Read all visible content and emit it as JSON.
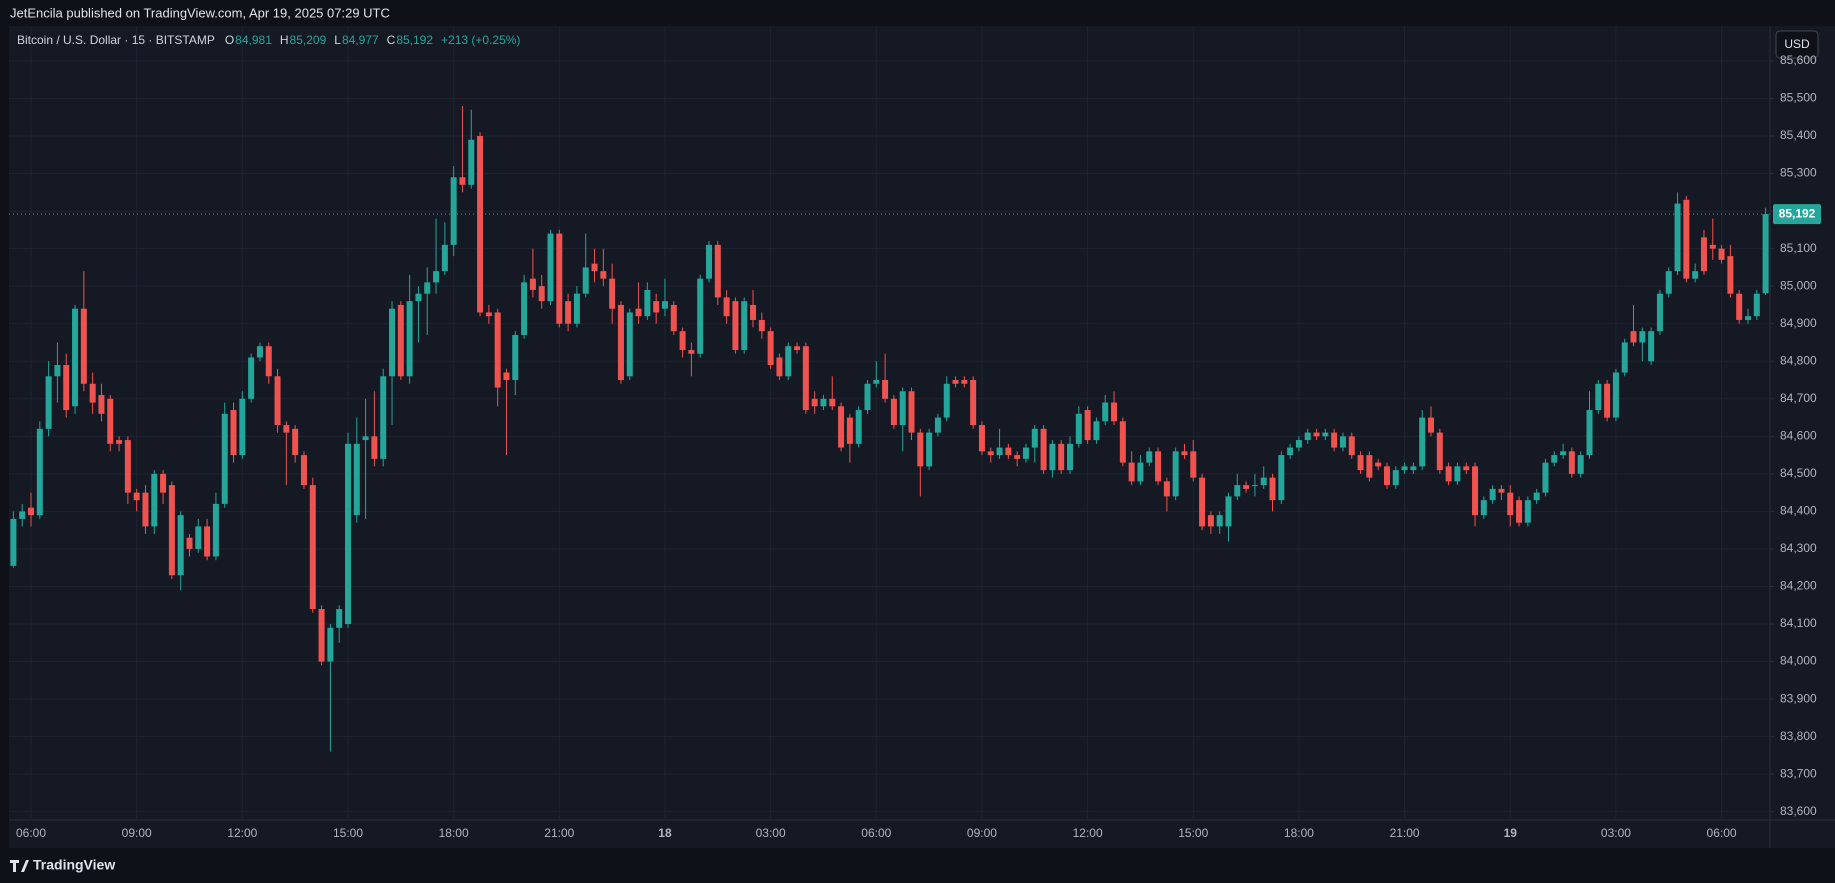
{
  "header": {
    "publisher": "JetEncila published on TradingView.com, Apr 19, 2025 07:29 UTC"
  },
  "footer": {
    "brand": "TradingView"
  },
  "currency": "USD",
  "legend": {
    "symbol": "Bitcoin / U.S. Dollar · 15 · BITSTAMP",
    "ohlc": [
      {
        "key": "O",
        "value": "84,981"
      },
      {
        "key": "H",
        "value": "85,209"
      },
      {
        "key": "L",
        "value": "84,977"
      },
      {
        "key": "C",
        "value": "85,192"
      }
    ],
    "change": "+213 (+0.25%)"
  },
  "chart_data": {
    "type": "candlestick",
    "up_color": "#26a69a",
    "down_color": "#ef5350",
    "grid": true,
    "last_price": {
      "value": 85192,
      "label": "85,192"
    },
    "xlim": [
      -0.5,
      199.5
    ],
    "xticks": [
      {
        "value": 2,
        "label": "06:00"
      },
      {
        "value": 14,
        "label": "09:00"
      },
      {
        "value": 26,
        "label": "12:00"
      },
      {
        "value": 38,
        "label": "15:00"
      },
      {
        "value": 50,
        "label": "18:00"
      },
      {
        "value": 62,
        "label": "21:00"
      },
      {
        "value": 74,
        "label": "18"
      },
      {
        "value": 86,
        "label": "03:00"
      },
      {
        "value": 98,
        "label": "06:00"
      },
      {
        "value": 110,
        "label": "09:00"
      },
      {
        "value": 122,
        "label": "12:00"
      },
      {
        "value": 134,
        "label": "15:00"
      },
      {
        "value": 146,
        "label": "18:00"
      },
      {
        "value": 158,
        "label": "21:00"
      },
      {
        "value": 170,
        "label": "19"
      },
      {
        "value": 182,
        "label": "03:00"
      },
      {
        "value": 194,
        "label": "06:00"
      }
    ],
    "ylim": [
      83578,
      85693
    ],
    "yticks": [
      {
        "value": 83600,
        "label": "83,600"
      },
      {
        "value": 83700,
        "label": "83,700"
      },
      {
        "value": 83800,
        "label": "83,800"
      },
      {
        "value": 83900,
        "label": "83,900"
      },
      {
        "value": 84000,
        "label": "84,000"
      },
      {
        "value": 84100,
        "label": "84,100"
      },
      {
        "value": 84200,
        "label": "84,200"
      },
      {
        "value": 84300,
        "label": "84,300"
      },
      {
        "value": 84400,
        "label": "84,400"
      },
      {
        "value": 84500,
        "label": "84,500"
      },
      {
        "value": 84600,
        "label": "84,600"
      },
      {
        "value": 84700,
        "label": "84,700"
      },
      {
        "value": 84800,
        "label": "84,800"
      },
      {
        "value": 84900,
        "label": "84,900"
      },
      {
        "value": 85000,
        "label": "85,000"
      },
      {
        "value": 85100,
        "label": "85,100"
      },
      {
        "value": 85200,
        "label": "85,200"
      },
      {
        "value": 85300,
        "label": "85,300"
      },
      {
        "value": 85400,
        "label": "85,400"
      },
      {
        "value": 85500,
        "label": "85,500"
      },
      {
        "value": 85600,
        "label": "85,600"
      }
    ],
    "open": [
      84255,
      84380,
      84410,
      84390,
      84620,
      84760,
      84790,
      84680,
      84940,
      84740,
      84710,
      84700,
      84590,
      84590,
      84450,
      84450,
      84360,
      84500,
      84470,
      84230,
      84330,
      84300,
      84360,
      84280,
      84420,
      84670,
      84550,
      84700,
      84810,
      84840,
      84760,
      84630,
      84620,
      84550,
      84470,
      84140,
      84000,
      84090,
      84100,
      84390,
      84590,
      84600,
      84540,
      84760,
      84950,
      84760,
      84960,
      84980,
      85010,
      85040,
      85110,
      85290,
      85270,
      85400,
      84930,
      84930,
      84770,
      84750,
      84870,
      85020,
      85000,
      84960,
      85140,
      84960,
      84900,
      84980,
      85060,
      85040,
      85020,
      84950,
      84760,
      84940,
      84920,
      84960,
      84940,
      84950,
      84880,
      84830,
      84820,
      85020,
      85110,
      84970,
      84960,
      84830,
      84950,
      84910,
      84880,
      84810,
      84760,
      84840,
      84840,
      84700,
      84680,
      84700,
      84680,
      84650,
      84580,
      84670,
      84740,
      84750,
      84700,
      84630,
      84720,
      84610,
      84520,
      84610,
      84650,
      84750,
      84750,
      84750,
      84630,
      84560,
      84550,
      84570,
      84550,
      84540,
      84570,
      84620,
      84510,
      84580,
      84510,
      84580,
      84670,
      84590,
      84640,
      84690,
      84640,
      84530,
      84480,
      84530,
      84560,
      84480,
      84440,
      84560,
      84560,
      84490,
      84390,
      84360,
      84360,
      84440,
      84470,
      84470,
      84470,
      84490,
      84430,
      84550,
      84570,
      84590,
      84610,
      84600,
      84610,
      84570,
      84600,
      84550,
      84550,
      84530,
      84520,
      84470,
      84510,
      84510,
      84520,
      84650,
      84610,
      84520,
      84480,
      84520,
      84520,
      84390,
      84430,
      84460,
      84450,
      84430,
      84370,
      84430,
      84450,
      84530,
      84550,
      84560,
      84500,
      84550,
      84670,
      84740,
      84650,
      84770,
      84880,
      84850,
      84800,
      84880,
      84980,
      85040,
      85230,
      85020,
      85130,
      85110,
      85100,
      85080,
      84980,
      84910,
      84920,
      84981
    ],
    "high": [
      84400,
      84420,
      84450,
      84640,
      84800,
      84850,
      84820,
      84950,
      85040,
      84770,
      84740,
      84710,
      84600,
      84600,
      84460,
      84470,
      84510,
      84510,
      84480,
      84400,
      84340,
      84380,
      84380,
      84450,
      84690,
      84690,
      84720,
      84820,
      84850,
      84850,
      84780,
      84640,
      84630,
      84560,
      84490,
      84150,
      84100,
      84150,
      84610,
      84650,
      84700,
      84720,
      84780,
      84960,
      84960,
      85030,
      85000,
      85050,
      85180,
      85170,
      85320,
      85480,
      85470,
      85410,
      84950,
      84940,
      84780,
      84880,
      85030,
      85100,
      85030,
      85150,
      85150,
      84980,
      85000,
      85140,
      85100,
      85100,
      85060,
      84960,
      84940,
      85010,
      85010,
      84980,
      85020,
      84960,
      84890,
      84850,
      85030,
      85120,
      85120,
      84990,
      84970,
      84970,
      84990,
      84930,
      84890,
      84820,
      84850,
      84850,
      84850,
      84720,
      84710,
      84760,
      84690,
      84660,
      84680,
      84750,
      84800,
      84820,
      84710,
      84730,
      84730,
      84620,
      84620,
      84660,
      84760,
      84760,
      84760,
      84760,
      84640,
      84570,
      84620,
      84580,
      84560,
      84580,
      84630,
      84630,
      84590,
      84590,
      84600,
      84680,
      84680,
      84650,
      84710,
      84720,
      84650,
      84560,
      84550,
      84570,
      84570,
      84490,
      84570,
      84580,
      84590,
      84500,
      84400,
      84400,
      84450,
      84500,
      84480,
      84500,
      84520,
      84500,
      84560,
      84580,
      84600,
      84620,
      84620,
      84620,
      84620,
      84610,
      84610,
      84560,
      84560,
      84540,
      84530,
      84520,
      84530,
      84530,
      84670,
      84680,
      84620,
      84530,
      84530,
      84530,
      84530,
      84440,
      84470,
      84470,
      84470,
      84440,
      84440,
      84460,
      84540,
      84560,
      84580,
      84570,
      84560,
      84720,
      84750,
      84750,
      84780,
      84860,
      84950,
      84890,
      84890,
      84990,
      85050,
      85250,
      85240,
      85060,
      85150,
      85180,
      85110,
      85110,
      84990,
      84940,
      84990,
      85209
    ],
    "low": [
      84250,
      84360,
      84360,
      84380,
      84600,
      84690,
      84650,
      84660,
      84720,
      84660,
      84640,
      84560,
      84560,
      84420,
      84400,
      84340,
      84340,
      84420,
      84220,
      84190,
      84280,
      84290,
      84270,
      84270,
      84410,
      84530,
      84540,
      84690,
      84800,
      84740,
      84610,
      84470,
      84530,
      84460,
      84130,
      83990,
      83760,
      84050,
      84090,
      84370,
      84380,
      84520,
      84520,
      84630,
      84750,
      84740,
      84850,
      84870,
      84980,
      85030,
      85080,
      85250,
      85260,
      84920,
      84900,
      84680,
      84550,
      84710,
      84860,
      84970,
      84940,
      84950,
      84890,
      84880,
      84890,
      84970,
      85010,
      85000,
      84900,
      84740,
      84750,
      84900,
      84910,
      84900,
      84920,
      84870,
      84810,
      84760,
      84810,
      85010,
      84950,
      84900,
      84820,
      84820,
      84890,
      84860,
      84780,
      84750,
      84750,
      84820,
      84660,
      84660,
      84670,
      84670,
      84560,
      84530,
      84570,
      84660,
      84730,
      84690,
      84620,
      84560,
      84590,
      84440,
      84510,
      84600,
      84640,
      84730,
      84730,
      84620,
      84550,
      84530,
      84540,
      84540,
      84520,
      84530,
      84530,
      84500,
      84490,
      84500,
      84500,
      84570,
      84580,
      84580,
      84630,
      84630,
      84520,
      84470,
      84470,
      84520,
      84470,
      84400,
      84430,
      84540,
      84480,
      84350,
      84340,
      84340,
      84320,
      84430,
      84450,
      84440,
      84460,
      84400,
      84420,
      84540,
      84560,
      84580,
      84590,
      84590,
      84560,
      84560,
      84540,
      84500,
      84480,
      84510,
      84460,
      84460,
      84500,
      84500,
      84510,
      84600,
      84500,
      84470,
      84470,
      84500,
      84360,
      84380,
      84420,
      84430,
      84360,
      84360,
      84360,
      84420,
      84440,
      84520,
      84540,
      84490,
      84490,
      84540,
      84660,
      84640,
      84640,
      84760,
      84840,
      84800,
      84790,
      84870,
      84970,
      85030,
      85010,
      85010,
      85030,
      85070,
      85060,
      84970,
      84900,
      84900,
      84910,
      84977
    ],
    "close": [
      84380,
      84400,
      84390,
      84620,
      84760,
      84790,
      84670,
      84940,
      84740,
      84690,
      84660,
      84580,
      84580,
      84450,
      84430,
      84360,
      84500,
      84450,
      84230,
      84390,
      84300,
      84360,
      84280,
      84420,
      84660,
      84550,
      84700,
      84810,
      84840,
      84760,
      84630,
      84610,
      84550,
      84470,
      84140,
      84000,
      84090,
      84140,
      84580,
      84580,
      84600,
      84540,
      84760,
      84940,
      84760,
      84960,
      84980,
      85010,
      85040,
      85110,
      85290,
      85270,
      85390,
      84930,
      84920,
      84730,
      84750,
      84870,
      85010,
      84990,
      84960,
      85140,
      84900,
      84900,
      84980,
      85050,
      85040,
      85020,
      84940,
      84750,
      84930,
      84920,
      84990,
      84930,
      84960,
      84880,
      84830,
      84820,
      85020,
      85110,
      84970,
      84920,
      84830,
      84960,
      84910,
      84880,
      84790,
      84760,
      84840,
      84830,
      84670,
      84680,
      84700,
      84680,
      84570,
      84580,
      84670,
      84740,
      84750,
      84700,
      84630,
      84720,
      84610,
      84520,
      84610,
      84650,
      84740,
      84740,
      84740,
      84630,
      84560,
      84550,
      84570,
      84550,
      84540,
      84570,
      84620,
      84510,
      84580,
      84510,
      84580,
      84660,
      84590,
      84640,
      84690,
      84640,
      84530,
      84480,
      84530,
      84560,
      84480,
      84440,
      84560,
      84550,
      84490,
      84360,
      84360,
      84390,
      84440,
      84470,
      84460,
      84470,
      84490,
      84430,
      84550,
      84570,
      84590,
      84610,
      84600,
      84610,
      84570,
      84600,
      84550,
      84510,
      84490,
      84520,
      84470,
      84510,
      84520,
      84520,
      84650,
      84610,
      84510,
      84480,
      84520,
      84510,
      84390,
      84430,
      84460,
      84450,
      84390,
      84370,
      84430,
      84450,
      84530,
      84550,
      84560,
      84500,
      84550,
      84670,
      84740,
      84650,
      84770,
      84850,
      84850,
      84880,
      84880,
      84980,
      85040,
      85220,
      85020,
      85040,
      85040,
      85100,
      85070,
      84980,
      84910,
      84920,
      84980,
      85192
    ]
  }
}
